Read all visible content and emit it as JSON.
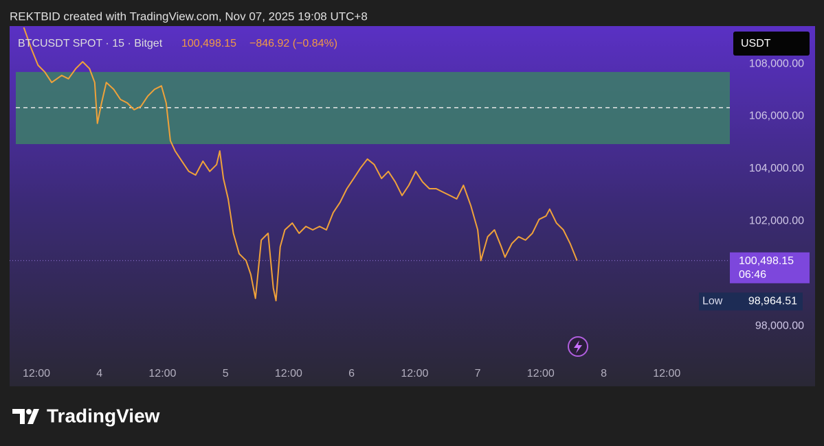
{
  "header": {
    "text": "REKTBID created with TradingView.com, Nov 07, 2025 19:08 UTC+8"
  },
  "chart_data": {
    "type": "line",
    "symbol": "BTCUSDT SPOT · 15 · Bitget",
    "change": "−846.92 (−0.84%)",
    "currency": "USDT",
    "x": [
      9.6,
      11.0,
      12.3,
      13.6,
      14.9,
      16.8,
      18.1,
      19.5,
      20.8,
      22.1,
      23.1,
      23.6,
      24.4,
      25.3,
      26.7,
      28.0,
      29.3,
      30.6,
      31.9,
      33.2,
      34.5,
      35.8,
      36.7,
      37.5,
      38.4,
      39.7,
      41.0,
      42.3,
      43.7,
      45.0,
      46.3,
      46.9,
      47.6,
      48.5,
      49.5,
      50.6,
      51.9,
      52.8,
      53.7,
      54.8,
      56.1,
      57.1,
      57.6,
      58.4,
      59.3,
      60.7,
      62.0,
      63.3,
      64.6,
      65.9,
      67.2,
      68.5,
      69.8,
      71.1,
      72.4,
      73.7,
      75.0,
      76.3,
      77.7,
      79.0,
      80.3,
      81.6,
      82.9,
      84.2,
      85.5,
      86.8,
      88.1,
      89.4,
      90.7,
      92.0,
      93.3,
      94.7,
      96.0,
      96.6,
      97.9,
      99.2,
      100.5,
      101.2,
      102.5,
      103.8,
      105.1,
      106.4,
      107.7,
      109.0,
      109.7,
      111.0,
      112.3,
      113.6,
      114.9
    ],
    "series": [
      {
        "color": "#f0a23a",
        "values": [
          109390,
          108600,
          107950,
          107690,
          107290,
          107560,
          107430,
          107820,
          108080,
          107820,
          107290,
          105730,
          106510,
          107290,
          107030,
          106640,
          106510,
          106250,
          106380,
          106770,
          107030,
          107160,
          106510,
          105070,
          104680,
          104290,
          103900,
          103760,
          104290,
          103900,
          104160,
          104680,
          103630,
          102850,
          101540,
          100760,
          100500,
          99970,
          99060,
          101280,
          101540,
          99450,
          98970,
          101020,
          101670,
          101930,
          101540,
          101800,
          101670,
          101800,
          101670,
          102330,
          102720,
          103240,
          103630,
          104030,
          104370,
          104160,
          103630,
          103900,
          103500,
          102980,
          103370,
          103900,
          103500,
          103240,
          103240,
          103110,
          102980,
          102850,
          103370,
          102590,
          101670,
          100500,
          101410,
          101670,
          101020,
          100630,
          101150,
          101410,
          101280,
          101540,
          102070,
          102200,
          102460,
          101930,
          101670,
          101150,
          100498.15
        ]
      }
    ],
    "xlim": [
      6.9,
      144
    ],
    "xticks": [
      {
        "value": 12,
        "label": "12:00"
      },
      {
        "value": 24,
        "label": "4"
      },
      {
        "value": 36,
        "label": "12:00"
      },
      {
        "value": 48,
        "label": "5"
      },
      {
        "value": 60,
        "label": "12:00"
      },
      {
        "value": 72,
        "label": "6"
      },
      {
        "value": 84,
        "label": "12:00"
      },
      {
        "value": 96,
        "label": "7"
      },
      {
        "value": 108,
        "label": "12:00"
      },
      {
        "value": 120,
        "label": "8"
      },
      {
        "value": 132,
        "label": "12:00"
      }
    ],
    "ylim": [
      96700,
      109440
    ],
    "yticks": [
      {
        "value": 98000,
        "label": "98,000.00"
      },
      {
        "value": 102000,
        "label": "102,000.00"
      },
      {
        "value": 104000,
        "label": "104,000.00"
      },
      {
        "value": 106000,
        "label": "106,000.00"
      },
      {
        "value": 108000,
        "label": "108,000.00"
      }
    ],
    "last_price": {
      "value": 100498.15,
      "label": "100,498.15"
    },
    "countdown": "06:46",
    "low_text": "Low",
    "low": {
      "value": 98964.51,
      "label": "98,964.51"
    },
    "zone": {
      "high": 107690,
      "low": 104940,
      "line": 106330,
      "color": "#3d7a6c"
    }
  },
  "footer": {
    "brand": "TradingView"
  }
}
